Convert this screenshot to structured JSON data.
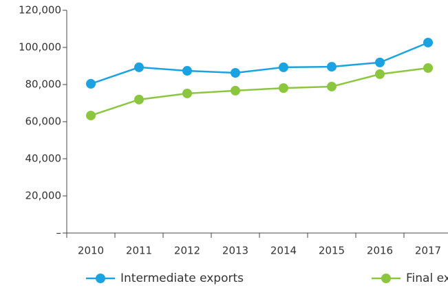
{
  "chart_data": {
    "type": "line",
    "categories": [
      "2010",
      "2011",
      "2012",
      "2013",
      "2014",
      "2015",
      "2016",
      "2017"
    ],
    "series": [
      {
        "name": "Intermediate exports",
        "color": "#1aa3e0",
        "values": [
          80400,
          89300,
          87400,
          86300,
          89300,
          89600,
          91900,
          102600
        ]
      },
      {
        "name": "Final exports",
        "color": "#8cc63f",
        "values": [
          63300,
          71900,
          75200,
          76700,
          78100,
          78900,
          85600,
          88900
        ]
      }
    ],
    "ylim": [
      0,
      120000
    ],
    "yticks": [
      {
        "value": 0,
        "label": "–"
      },
      {
        "value": 20000,
        "label": "20,000"
      },
      {
        "value": 40000,
        "label": "40,000"
      },
      {
        "value": 60000,
        "label": "60,000"
      },
      {
        "value": 80000,
        "label": "80,000"
      },
      {
        "value": 100000,
        "label": "100,000"
      },
      {
        "value": 120000,
        "label": "120,000"
      }
    ],
    "legend": "bottom"
  }
}
